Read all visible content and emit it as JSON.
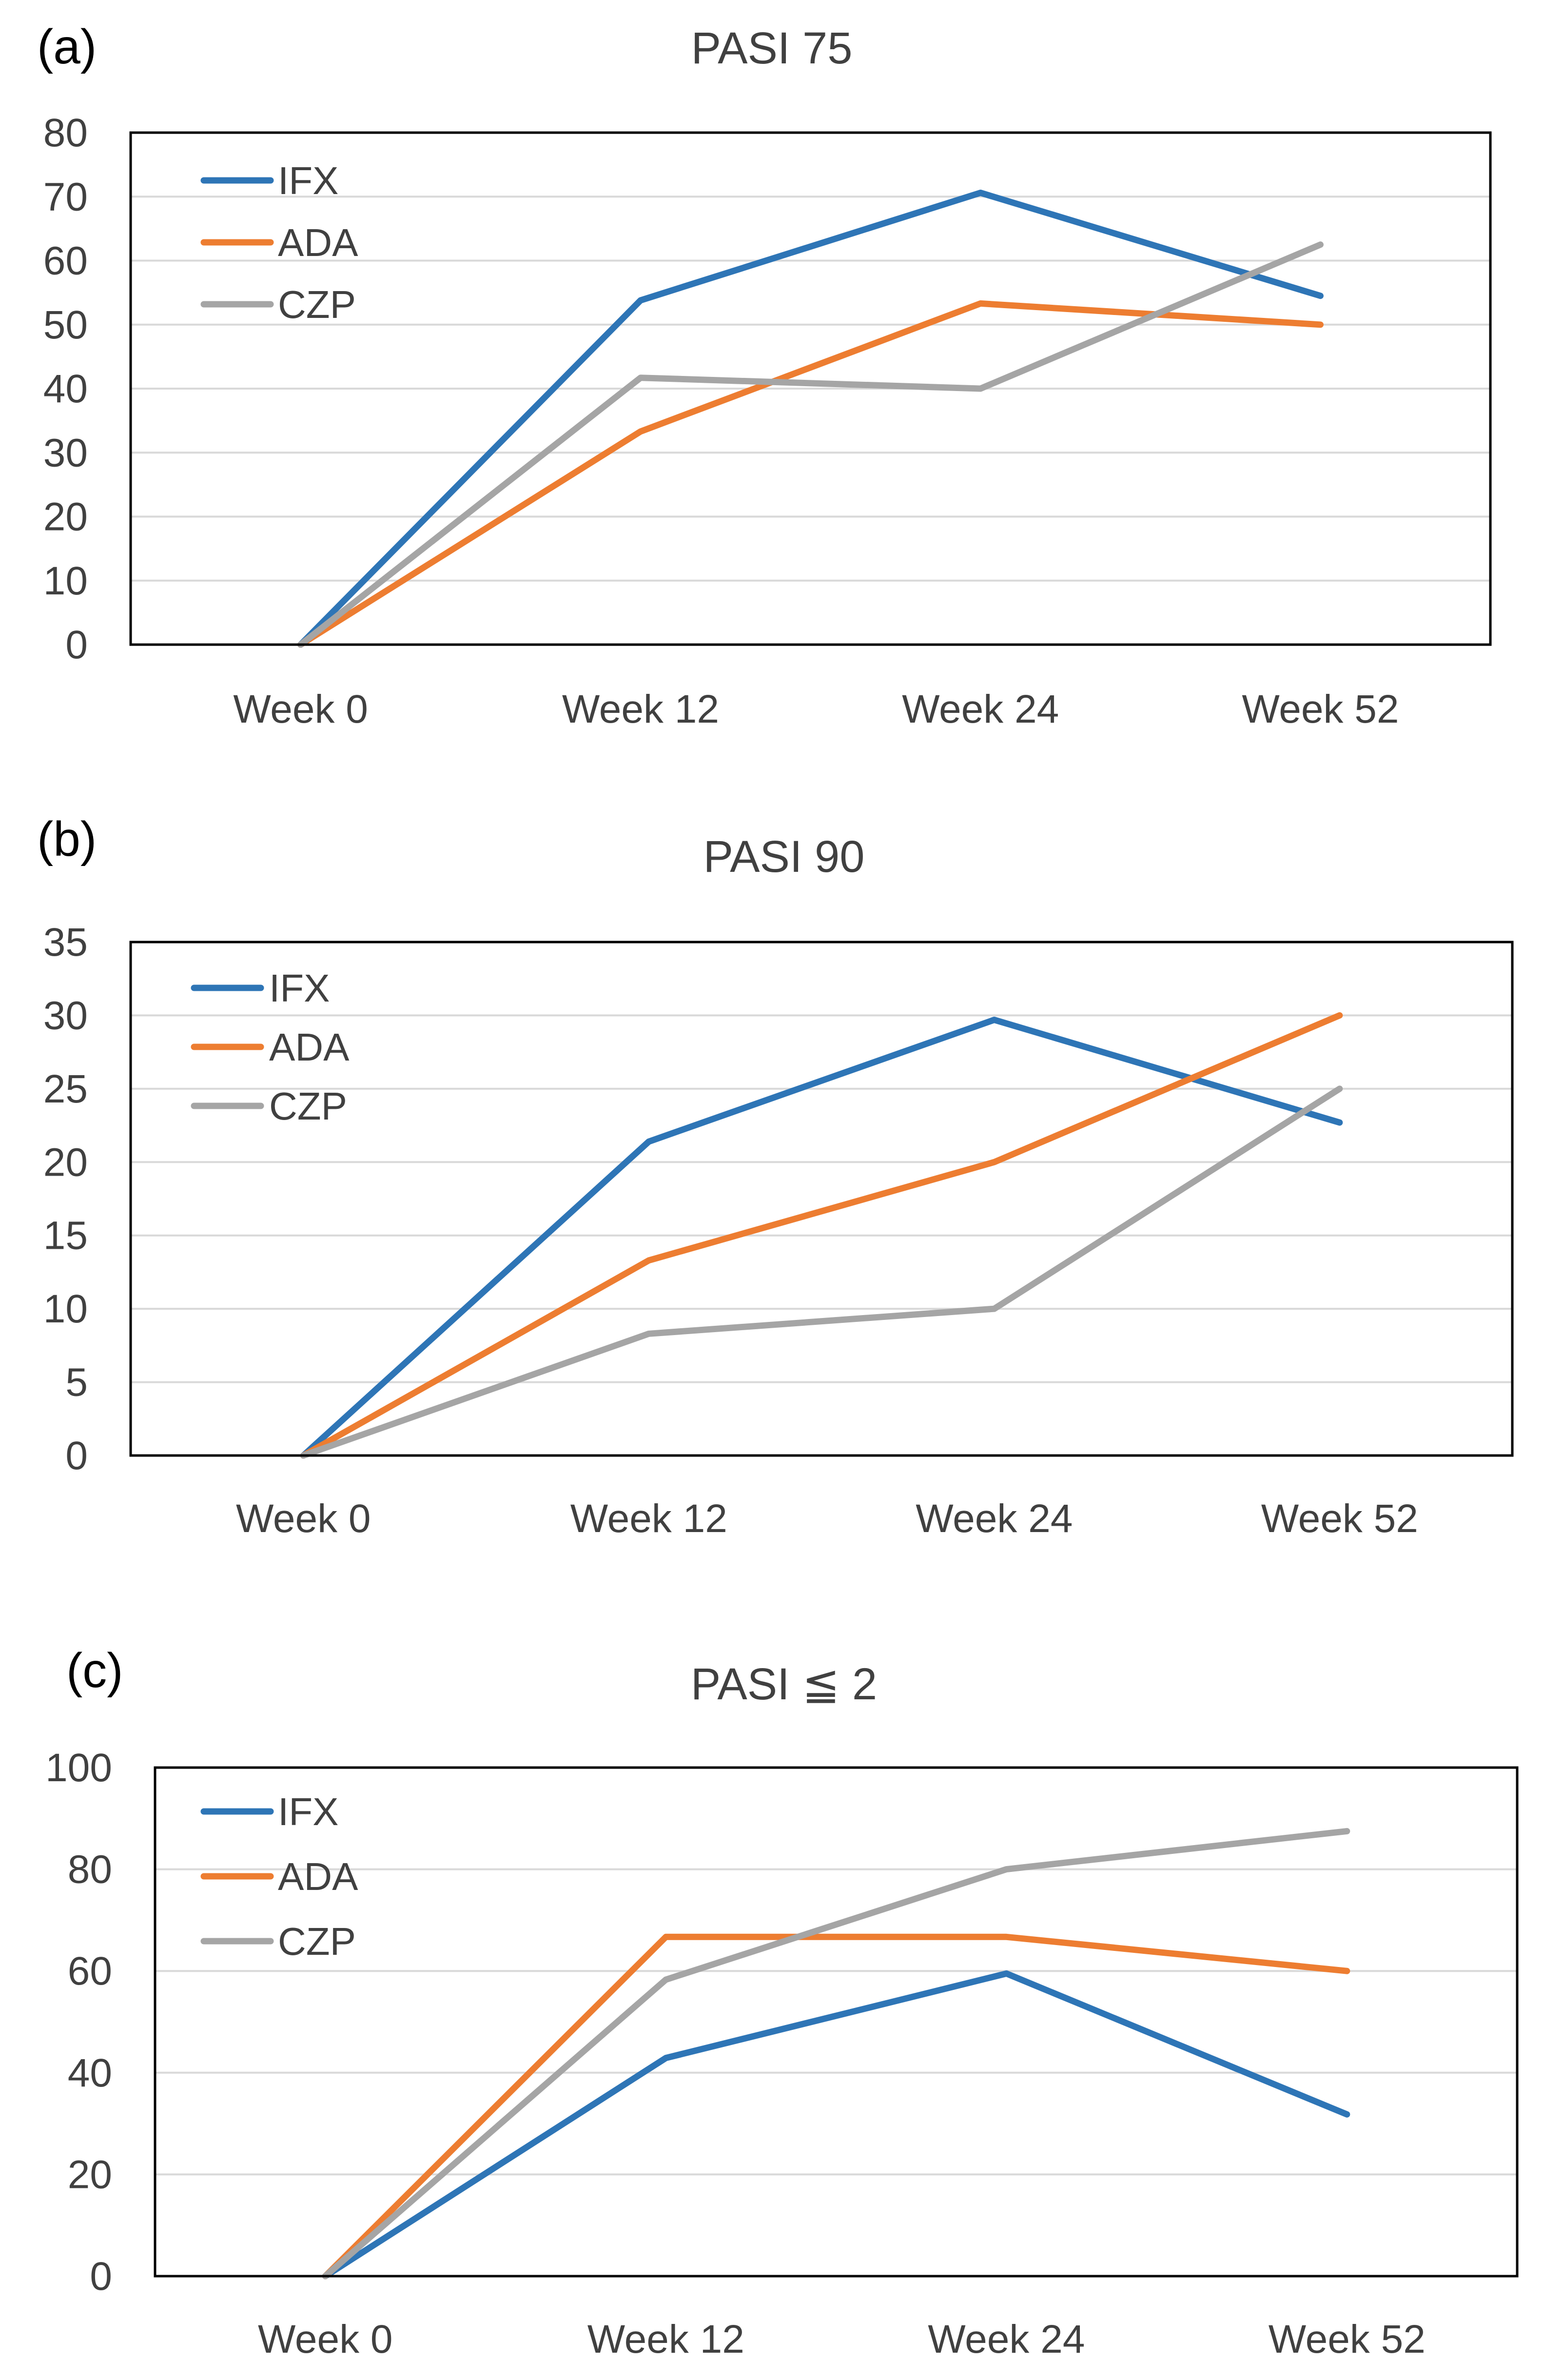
{
  "chart_data": [
    {
      "type": "line",
      "panel_label": "(a)",
      "title": "PASI 75",
      "categories": [
        "Week 0",
        "Week 12",
        "Week 24",
        "Week 52"
      ],
      "ylim": [
        0,
        80
      ],
      "yticks": [
        0,
        10,
        20,
        30,
        40,
        50,
        60,
        70,
        80
      ],
      "grid": true,
      "legend": "top-left",
      "series": [
        {
          "name": "IFX",
          "color": "#2e75b6",
          "values": [
            0,
            53.8,
            70.6,
            54.5
          ]
        },
        {
          "name": "ADA",
          "color": "#ed7d31",
          "values": [
            0,
            33.3,
            53.3,
            50.0
          ]
        },
        {
          "name": "CZP",
          "color": "#a5a5a5",
          "values": [
            0,
            41.7,
            40.0,
            62.5
          ]
        }
      ]
    },
    {
      "type": "line",
      "panel_label": "(b)",
      "title": "PASI 90",
      "categories": [
        "Week 0",
        "Week 12",
        "Week 24",
        "Week 52"
      ],
      "ylim": [
        0,
        35
      ],
      "yticks": [
        0,
        5,
        10,
        15,
        20,
        25,
        30,
        35
      ],
      "grid": true,
      "legend": "top-left",
      "series": [
        {
          "name": "IFX",
          "color": "#2e75b6",
          "values": [
            0,
            21.4,
            29.7,
            22.7
          ]
        },
        {
          "name": "ADA",
          "color": "#ed7d31",
          "values": [
            0,
            13.3,
            20.0,
            30.0
          ]
        },
        {
          "name": "CZP",
          "color": "#a5a5a5",
          "values": [
            0,
            8.3,
            10.0,
            25.0
          ]
        }
      ]
    },
    {
      "type": "line",
      "panel_label": "(c)",
      "title": "PASI ≦ 2",
      "categories": [
        "Week 0",
        "Week 12",
        "Week 24",
        "Week 52"
      ],
      "ylim": [
        0,
        100
      ],
      "yticks": [
        0,
        20,
        40,
        60,
        80,
        100
      ],
      "grid": true,
      "legend": "top-left",
      "series": [
        {
          "name": "IFX",
          "color": "#2e75b6",
          "values": [
            0,
            42.9,
            59.5,
            31.8
          ]
        },
        {
          "name": "ADA",
          "color": "#ed7d31",
          "values": [
            0,
            66.7,
            66.7,
            60.0
          ]
        },
        {
          "name": "CZP",
          "color": "#a5a5a5",
          "values": [
            0,
            58.3,
            80.0,
            87.5
          ]
        }
      ]
    }
  ]
}
